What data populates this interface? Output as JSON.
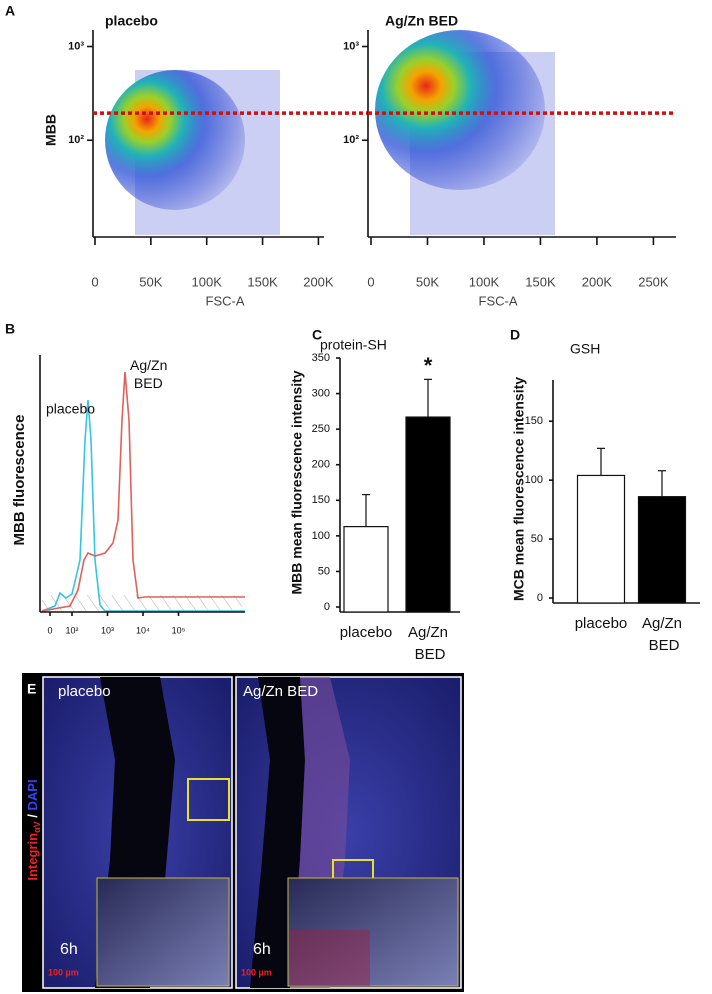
{
  "panel_labels": [
    "A",
    "B",
    "C",
    "D",
    "E"
  ],
  "chart_data": [
    {
      "type": "scatter-density",
      "title": "placebo",
      "ylabel": "MBB",
      "xlabel": "FSC-A",
      "xlim": [
        0,
        205000
      ],
      "xticks": [
        0,
        {
          "value": 50000,
          "label": "50K"
        },
        {
          "value": 100000,
          "label": "100K"
        },
        {
          "value": 150000,
          "label": "150K"
        },
        {
          "value": 200000,
          "label": "200K"
        }
      ],
      "ylim": [
        10,
        1500
      ],
      "log_y": true,
      "yticks": [
        {
          "value": 100,
          "label": "10²"
        },
        {
          "value": 1000,
          "label": "10³"
        }
      ],
      "threshold": 195,
      "threshold_color": "#cc1111"
    },
    {
      "type": "scatter-density",
      "title": "Ag/Zn BED",
      "xlabel": "FSC-A",
      "xlim": [
        0,
        270000
      ],
      "xticks": [
        0,
        {
          "value": 50000,
          "label": "50K"
        },
        {
          "value": 100000,
          "label": "100K"
        },
        {
          "value": 150000,
          "label": "150K"
        },
        {
          "value": 200000,
          "label": "200K"
        },
        {
          "value": 250000,
          "label": "250K"
        }
      ],
      "ylim": [
        10,
        1500
      ],
      "log_y": true,
      "yticks": [
        {
          "value": 100,
          "label": "10²"
        },
        {
          "value": 1000,
          "label": "10³"
        }
      ],
      "threshold": 195,
      "threshold_color": "#cc1111"
    },
    {
      "type": "histogram-curves",
      "ylabel": "MBB fluorescence",
      "xticks": [
        0,
        {
          "value": 100,
          "label": "10²"
        },
        {
          "value": 1000,
          "label": "10³"
        },
        {
          "value": 10000,
          "label": "10⁴"
        },
        {
          "value": 100000,
          "label": "10⁵"
        }
      ],
      "series": [
        {
          "name": "placebo",
          "color": "#33c6dd"
        },
        {
          "name": "Ag/Zn BED",
          "color": "#e0605a"
        }
      ]
    },
    {
      "type": "bar",
      "title": "protein-SH",
      "ylabel": "MBB mean fluorescence intensity",
      "categories": [
        "placebo",
        "Ag/Zn BED"
      ],
      "values": [
        113,
        267
      ],
      "errors": [
        45,
        53
      ],
      "colors": [
        "#ffffff",
        "#000000"
      ],
      "ylim": [
        0,
        350
      ],
      "yticks": [
        0,
        50,
        100,
        150,
        200,
        250,
        300,
        350
      ],
      "annotation": "*"
    },
    {
      "type": "bar",
      "title": "GSH",
      "ylabel": "MCB mean fluorescence intensity",
      "categories": [
        "placebo",
        "Ag/Zn BED"
      ],
      "values": [
        104,
        86
      ],
      "errors": [
        23,
        22
      ],
      "colors": [
        "#ffffff",
        "#000000"
      ],
      "ylim": [
        0,
        185
      ],
      "yticks": [
        0,
        50,
        100,
        150
      ]
    }
  ],
  "images": {
    "stain": {
      "marker": "Integrin",
      "subscript": "αV",
      "separator": " / ",
      "nucleus": "DAPI"
    },
    "panels": [
      {
        "label": "placebo",
        "time": "6h",
        "scale": "100 µm"
      },
      {
        "label": "Ag/Zn BED",
        "time": "6h",
        "scale": "100 µm"
      }
    ]
  }
}
